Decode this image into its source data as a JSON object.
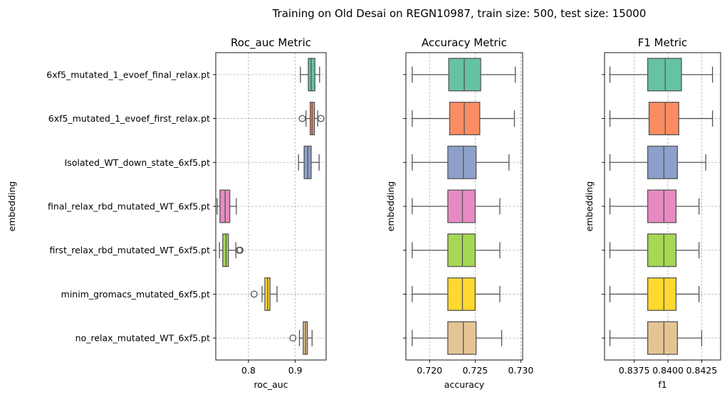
{
  "suptitle": "Training on Old Desai on REGN10987, train size: 500, test size: 15000",
  "colors": [
    "#66c2a5",
    "#fc8d62",
    "#8da0cb",
    "#e78ac3",
    "#a6d854",
    "#ffd92f",
    "#e5c494"
  ],
  "chart_data": [
    {
      "type": "box",
      "orientation": "horizontal",
      "title": "Roc_auc Metric",
      "xlabel": "roc_auc",
      "ylabel": "embedding",
      "xlim": [
        0.73,
        0.966
      ],
      "xticks": [
        0.8,
        0.9
      ],
      "xtick_labels": [
        "0.8",
        "0.9"
      ],
      "grid": true,
      "categories": [
        "6xf5_mutated_1_evoef_final_relax.pt",
        "6xf5_mutated_1_evoef_first_relax.pt",
        "Isolated_WT_down_state_6xf5.pt",
        "final_relax_rbd_mutated_WT_6xf5.pt",
        "first_relax_rbd_mutated_WT_6xf5.pt",
        "minim_gromacs_mutated_6xf5.pt",
        "no_relax_mutated_WT_6xf5.pt"
      ],
      "boxes": [
        {
          "whislo": 0.911,
          "q1": 0.928,
          "med": 0.934,
          "q3": 0.942,
          "whishi": 0.952,
          "fliers": []
        },
        {
          "whislo": 0.923,
          "q1": 0.932,
          "med": 0.936,
          "q3": 0.941,
          "whishi": 0.948,
          "fliers": [
            0.915,
            0.955
          ]
        },
        {
          "whislo": 0.907,
          "q1": 0.919,
          "med": 0.927,
          "q3": 0.934,
          "whishi": 0.951,
          "fliers": []
        },
        {
          "whislo": 0.733,
          "q1": 0.739,
          "med": 0.75,
          "q3": 0.76,
          "whishi": 0.774,
          "fliers": []
        },
        {
          "whislo": 0.738,
          "q1": 0.745,
          "med": 0.752,
          "q3": 0.757,
          "whishi": 0.773,
          "fliers": [
            0.78,
            0.782
          ]
        },
        {
          "whislo": 0.829,
          "q1": 0.835,
          "med": 0.841,
          "q3": 0.846,
          "whishi": 0.861,
          "fliers": [
            0.812
          ]
        },
        {
          "whislo": 0.909,
          "q1": 0.917,
          "med": 0.922,
          "q3": 0.926,
          "whishi": 0.936,
          "fliers": [
            0.895
          ]
        }
      ]
    },
    {
      "type": "box",
      "orientation": "horizontal",
      "title": "Accuracy Metric",
      "xlabel": "accuracy",
      "ylabel": "embedding",
      "xlim": [
        0.7174,
        0.7302
      ],
      "xticks": [
        0.72,
        0.725,
        0.73
      ],
      "xtick_labels": [
        "0.720",
        "0.725",
        "0.730"
      ],
      "grid": true,
      "boxes": [
        {
          "whislo": 0.7181,
          "q1": 0.7221,
          "med": 0.7238,
          "q3": 0.7256,
          "whishi": 0.7294,
          "fliers": []
        },
        {
          "whislo": 0.7181,
          "q1": 0.7222,
          "med": 0.7238,
          "q3": 0.7255,
          "whishi": 0.7293,
          "fliers": []
        },
        {
          "whislo": 0.7181,
          "q1": 0.722,
          "med": 0.7237,
          "q3": 0.7251,
          "whishi": 0.7287,
          "fliers": []
        },
        {
          "whislo": 0.7181,
          "q1": 0.722,
          "med": 0.7236,
          "q3": 0.725,
          "whishi": 0.7277,
          "fliers": []
        },
        {
          "whislo": 0.7181,
          "q1": 0.722,
          "med": 0.7236,
          "q3": 0.725,
          "whishi": 0.7277,
          "fliers": []
        },
        {
          "whislo": 0.7181,
          "q1": 0.722,
          "med": 0.7236,
          "q3": 0.725,
          "whishi": 0.7277,
          "fliers": []
        },
        {
          "whislo": 0.7181,
          "q1": 0.722,
          "med": 0.7237,
          "q3": 0.7251,
          "whishi": 0.7279,
          "fliers": []
        }
      ]
    },
    {
      "type": "box",
      "orientation": "horizontal",
      "title": "F1 Metric",
      "xlabel": "f1",
      "ylabel": "embedding",
      "xlim": [
        0.8353,
        0.8439
      ],
      "xticks": [
        0.8375,
        0.84,
        0.8425
      ],
      "xtick_labels": [
        "0.8375",
        "0.8400",
        "0.8425"
      ],
      "grid": true,
      "boxes": [
        {
          "whislo": 0.8357,
          "q1": 0.8385,
          "med": 0.8398,
          "q3": 0.841,
          "whishi": 0.8433,
          "fliers": []
        },
        {
          "whislo": 0.8357,
          "q1": 0.8386,
          "med": 0.8398,
          "q3": 0.8408,
          "whishi": 0.8433,
          "fliers": []
        },
        {
          "whislo": 0.8357,
          "q1": 0.8385,
          "med": 0.8397,
          "q3": 0.8407,
          "whishi": 0.8428,
          "fliers": []
        },
        {
          "whislo": 0.8357,
          "q1": 0.8385,
          "med": 0.8397,
          "q3": 0.8406,
          "whishi": 0.8423,
          "fliers": []
        },
        {
          "whislo": 0.8357,
          "q1": 0.8385,
          "med": 0.8397,
          "q3": 0.8406,
          "whishi": 0.8423,
          "fliers": []
        },
        {
          "whislo": 0.8357,
          "q1": 0.8385,
          "med": 0.8397,
          "q3": 0.8406,
          "whishi": 0.8423,
          "fliers": []
        },
        {
          "whislo": 0.8357,
          "q1": 0.8385,
          "med": 0.8397,
          "q3": 0.8407,
          "whishi": 0.8425,
          "fliers": []
        }
      ]
    }
  ]
}
